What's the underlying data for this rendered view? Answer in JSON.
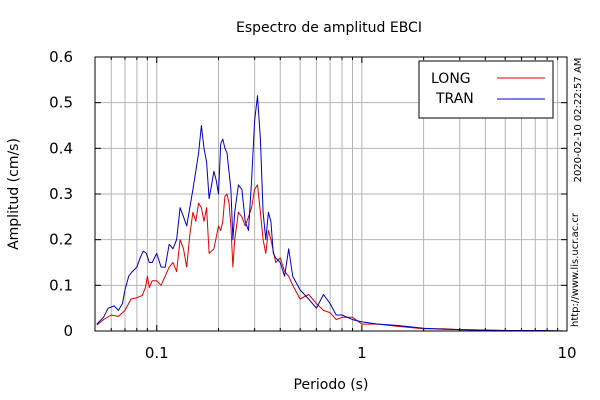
{
  "chart_data": {
    "type": "line",
    "title": "Espectro de amplitud EBCI",
    "xlabel": "Periodo (s)",
    "ylabel": "Amplitud (cm/s)",
    "x_scale": "log",
    "xlim": [
      0.05,
      10
    ],
    "ylim": [
      0,
      0.6
    ],
    "x_ticks": [
      {
        "value": 0.1,
        "label": "0.1"
      },
      {
        "value": 1,
        "label": "1"
      },
      {
        "value": 10,
        "label": "10"
      }
    ],
    "y_ticks": [
      {
        "value": 0,
        "label": "0"
      },
      {
        "value": 0.1,
        "label": "0.1"
      },
      {
        "value": 0.2,
        "label": "0.2"
      },
      {
        "value": 0.3,
        "label": "0.3"
      },
      {
        "value": 0.4,
        "label": "0.4"
      },
      {
        "value": 0.5,
        "label": "0.5"
      },
      {
        "value": 0.6,
        "label": "0.6"
      }
    ],
    "grid": true,
    "legend_position": "top-right",
    "series": [
      {
        "name": "LONG",
        "color": "#e00000",
        "points": [
          [
            0.051,
            0.013
          ],
          [
            0.055,
            0.025
          ],
          [
            0.06,
            0.035
          ],
          [
            0.065,
            0.032
          ],
          [
            0.07,
            0.045
          ],
          [
            0.075,
            0.07
          ],
          [
            0.08,
            0.073
          ],
          [
            0.085,
            0.078
          ],
          [
            0.088,
            0.095
          ],
          [
            0.09,
            0.12
          ],
          [
            0.092,
            0.095
          ],
          [
            0.095,
            0.11
          ],
          [
            0.1,
            0.11
          ],
          [
            0.105,
            0.1
          ],
          [
            0.11,
            0.12
          ],
          [
            0.115,
            0.14
          ],
          [
            0.12,
            0.15
          ],
          [
            0.125,
            0.13
          ],
          [
            0.13,
            0.2
          ],
          [
            0.135,
            0.18
          ],
          [
            0.14,
            0.14
          ],
          [
            0.145,
            0.21
          ],
          [
            0.15,
            0.26
          ],
          [
            0.155,
            0.24
          ],
          [
            0.16,
            0.28
          ],
          [
            0.165,
            0.27
          ],
          [
            0.17,
            0.24
          ],
          [
            0.175,
            0.27
          ],
          [
            0.18,
            0.17
          ],
          [
            0.19,
            0.18
          ],
          [
            0.2,
            0.23
          ],
          [
            0.205,
            0.22
          ],
          [
            0.21,
            0.24
          ],
          [
            0.215,
            0.295
          ],
          [
            0.22,
            0.3
          ],
          [
            0.225,
            0.28
          ],
          [
            0.23,
            0.23
          ],
          [
            0.235,
            0.14
          ],
          [
            0.24,
            0.2
          ],
          [
            0.25,
            0.26
          ],
          [
            0.26,
            0.25
          ],
          [
            0.27,
            0.23
          ],
          [
            0.28,
            0.25
          ],
          [
            0.29,
            0.27
          ],
          [
            0.3,
            0.31
          ],
          [
            0.31,
            0.32
          ],
          [
            0.32,
            0.26
          ],
          [
            0.33,
            0.2
          ],
          [
            0.34,
            0.17
          ],
          [
            0.35,
            0.22
          ],
          [
            0.36,
            0.2
          ],
          [
            0.38,
            0.15
          ],
          [
            0.4,
            0.16
          ],
          [
            0.42,
            0.13
          ],
          [
            0.44,
            0.12
          ],
          [
            0.46,
            0.1
          ],
          [
            0.5,
            0.07
          ],
          [
            0.55,
            0.08
          ],
          [
            0.6,
            0.06
          ],
          [
            0.65,
            0.045
          ],
          [
            0.7,
            0.04
          ],
          [
            0.75,
            0.025
          ],
          [
            0.8,
            0.03
          ],
          [
            0.9,
            0.03
          ],
          [
            1.0,
            0.015
          ],
          [
            1.2,
            0.015
          ],
          [
            1.5,
            0.01
          ],
          [
            2.0,
            0.005
          ],
          [
            2.5,
            0.005
          ],
          [
            3.0,
            0.003
          ],
          [
            4.0,
            0.002
          ],
          [
            5.0,
            0.001
          ],
          [
            7.0,
            0.001
          ],
          [
            10.0,
            0.0
          ]
        ]
      },
      {
        "name": "TRAN",
        "color": "#0000c0",
        "points": [
          [
            0.051,
            0.015
          ],
          [
            0.055,
            0.03
          ],
          [
            0.058,
            0.05
          ],
          [
            0.062,
            0.055
          ],
          [
            0.065,
            0.045
          ],
          [
            0.068,
            0.06
          ],
          [
            0.07,
            0.09
          ],
          [
            0.073,
            0.12
          ],
          [
            0.076,
            0.13
          ],
          [
            0.08,
            0.14
          ],
          [
            0.083,
            0.16
          ],
          [
            0.086,
            0.175
          ],
          [
            0.089,
            0.17
          ],
          [
            0.092,
            0.15
          ],
          [
            0.095,
            0.15
          ],
          [
            0.1,
            0.17
          ],
          [
            0.105,
            0.14
          ],
          [
            0.11,
            0.14
          ],
          [
            0.115,
            0.19
          ],
          [
            0.12,
            0.18
          ],
          [
            0.125,
            0.2
          ],
          [
            0.13,
            0.27
          ],
          [
            0.135,
            0.25
          ],
          [
            0.14,
            0.23
          ],
          [
            0.145,
            0.27
          ],
          [
            0.15,
            0.31
          ],
          [
            0.155,
            0.35
          ],
          [
            0.16,
            0.39
          ],
          [
            0.165,
            0.45
          ],
          [
            0.17,
            0.4
          ],
          [
            0.175,
            0.37
          ],
          [
            0.18,
            0.29
          ],
          [
            0.185,
            0.32
          ],
          [
            0.19,
            0.35
          ],
          [
            0.195,
            0.33
          ],
          [
            0.2,
            0.3
          ],
          [
            0.205,
            0.41
          ],
          [
            0.21,
            0.42
          ],
          [
            0.215,
            0.4
          ],
          [
            0.22,
            0.39
          ],
          [
            0.23,
            0.31
          ],
          [
            0.235,
            0.2
          ],
          [
            0.24,
            0.26
          ],
          [
            0.25,
            0.32
          ],
          [
            0.26,
            0.31
          ],
          [
            0.27,
            0.24
          ],
          [
            0.28,
            0.22
          ],
          [
            0.29,
            0.33
          ],
          [
            0.3,
            0.46
          ],
          [
            0.31,
            0.515
          ],
          [
            0.32,
            0.42
          ],
          [
            0.33,
            0.26
          ],
          [
            0.34,
            0.2
          ],
          [
            0.35,
            0.26
          ],
          [
            0.36,
            0.24
          ],
          [
            0.37,
            0.17
          ],
          [
            0.38,
            0.16
          ],
          [
            0.4,
            0.15
          ],
          [
            0.42,
            0.12
          ],
          [
            0.44,
            0.18
          ],
          [
            0.46,
            0.12
          ],
          [
            0.5,
            0.09
          ],
          [
            0.55,
            0.07
          ],
          [
            0.6,
            0.05
          ],
          [
            0.65,
            0.08
          ],
          [
            0.7,
            0.06
          ],
          [
            0.75,
            0.035
          ],
          [
            0.8,
            0.035
          ],
          [
            0.9,
            0.025
          ],
          [
            1.0,
            0.02
          ],
          [
            1.2,
            0.015
          ],
          [
            1.5,
            0.012
          ],
          [
            2.0,
            0.006
          ],
          [
            2.5,
            0.004
          ],
          [
            3.0,
            0.003
          ],
          [
            4.0,
            0.002
          ],
          [
            5.0,
            0.001
          ],
          [
            7.0,
            0.001
          ],
          [
            10.0,
            0.0
          ]
        ]
      }
    ]
  },
  "side_label": "2020-02-10 02:22:57 AM",
  "footer_url": "http://www.lis.ucr.ac.cr"
}
